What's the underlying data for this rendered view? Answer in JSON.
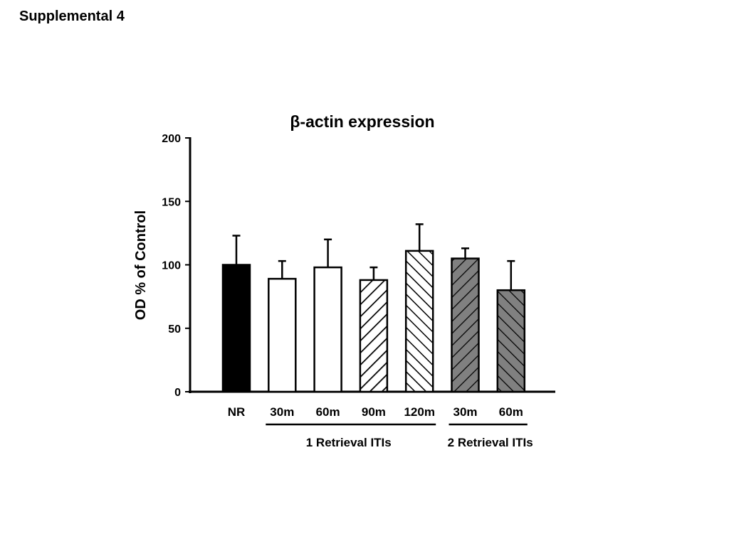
{
  "page": {
    "title": "Supplemental 4"
  },
  "chart_data": {
    "type": "bar",
    "title": "β-actin expression",
    "ylabel": "OD % of Control",
    "xlabel": "",
    "ylim": [
      0,
      200
    ],
    "yticks": [
      0,
      50,
      100,
      150,
      200
    ],
    "categories": [
      "NR",
      "30m",
      "60m",
      "90m",
      "120m",
      "30m",
      "60m"
    ],
    "values": [
      100,
      89,
      98,
      88,
      111,
      105,
      80
    ],
    "errors": [
      23,
      14,
      22,
      10,
      21,
      8,
      23
    ],
    "bar_styles": [
      "black",
      "white",
      "white",
      "hatch-white",
      "hatch-white-dense",
      "hatch-gray",
      "hatch-gray-reverse"
    ],
    "groups": [
      {
        "label": "1 Retrieval ITIs",
        "start_index": 1,
        "end_index": 4
      },
      {
        "label": "2 Retrieval ITIs",
        "start_index": 5,
        "end_index": 6
      }
    ],
    "colors": {
      "black": "#000000",
      "white": "#ffffff",
      "gray": "#808080"
    },
    "grid": false,
    "legend": "none"
  }
}
